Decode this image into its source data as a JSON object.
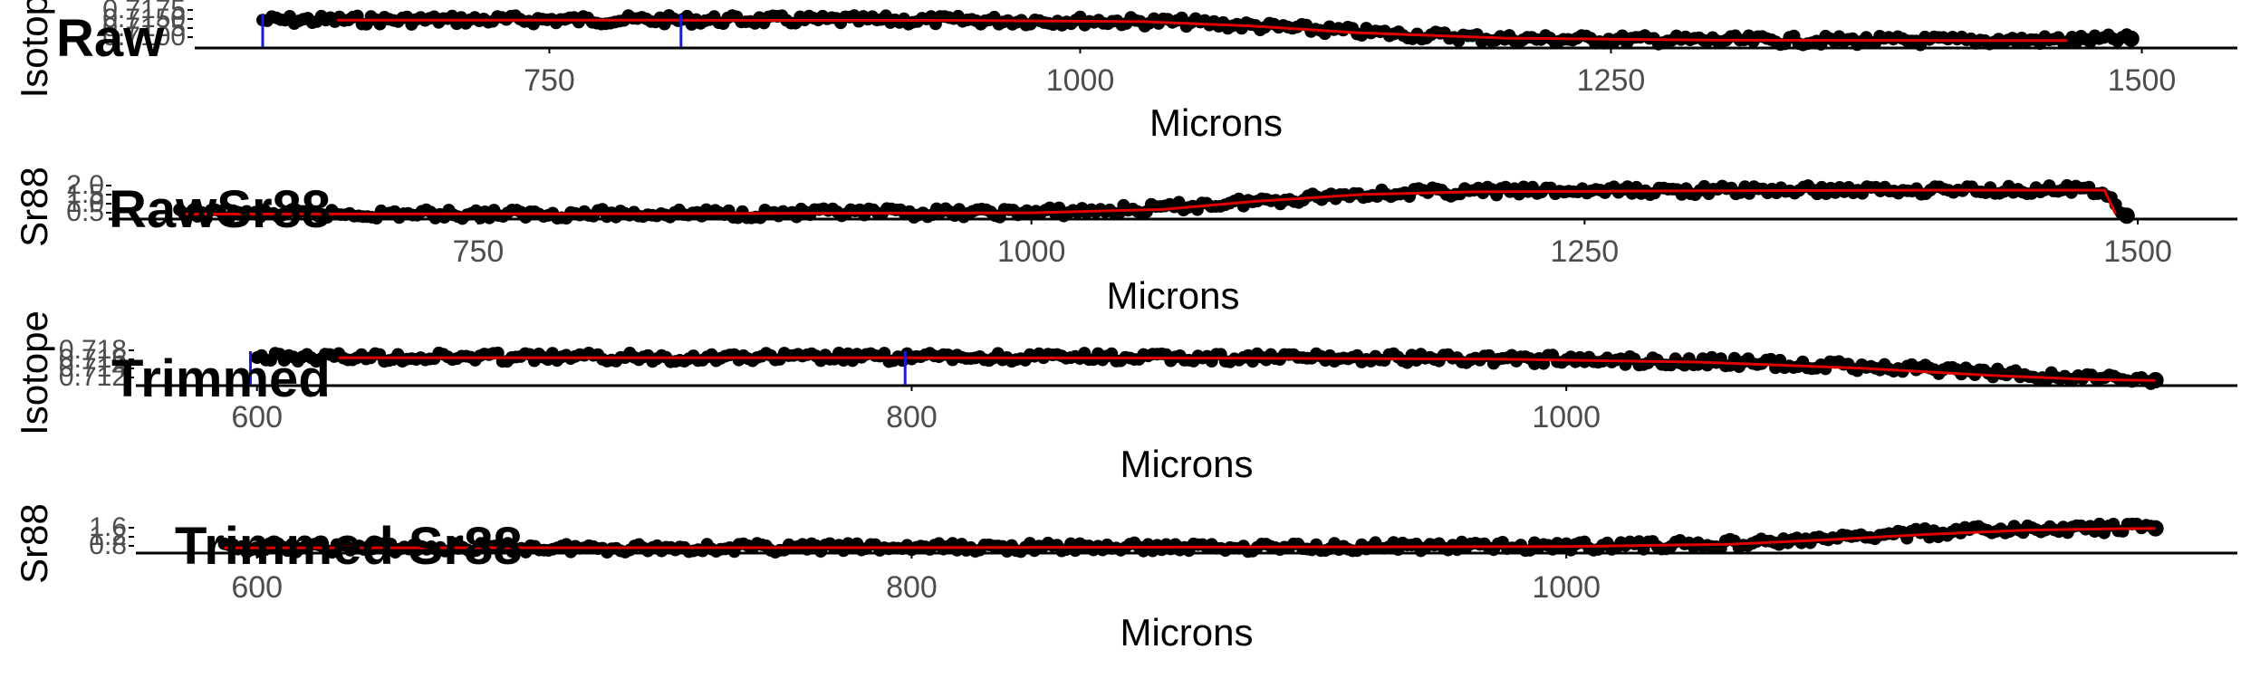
{
  "colors": {
    "points": "#000000",
    "fit": "#e00000",
    "marker": "#1a1adb",
    "axis": "#000000",
    "tick_text": "#4d4d4d"
  },
  "chart_data": [
    {
      "type": "scatter",
      "title": "Raw",
      "xlabel": "Microns",
      "ylabel": "Isotope",
      "xlim": [
        583,
        1545
      ],
      "x_ticks": [
        "750",
        "1000",
        "1250",
        "1500"
      ],
      "x_tick_values": [
        750,
        1000,
        1250,
        1500
      ],
      "y_ticks": [
        "0.7175",
        "0.7150",
        "0.7125",
        "0.7100"
      ],
      "ylim": [
        0.709,
        0.719
      ],
      "vertical_markers": [
        615,
        812
      ],
      "grid": false,
      "series": [
        {
          "kind": "points",
          "x": [
            615,
            700,
            800,
            900,
            1000,
            1050,
            1100,
            1150,
            1200,
            1300,
            1400,
            1450,
            1480,
            1495
          ],
          "y": [
            0.7177,
            0.7178,
            0.7178,
            0.7177,
            0.7175,
            0.717,
            0.715,
            0.713,
            0.7115,
            0.711,
            0.7108,
            0.711,
            0.7112,
            0.7115
          ]
        },
        {
          "kind": "fit",
          "x": [
            650,
            800,
            950,
            1030,
            1080,
            1130,
            1200,
            1300,
            1400,
            1465
          ],
          "y": [
            0.7177,
            0.7177,
            0.7176,
            0.7172,
            0.7158,
            0.7135,
            0.7117,
            0.711,
            0.7109,
            0.7109
          ]
        }
      ]
    },
    {
      "type": "scatter",
      "title": "RawSr88",
      "xlabel": "Microns",
      "ylabel": "Sr88",
      "xlim": [
        583,
        1545
      ],
      "x_ticks": [
        "750",
        "1000",
        "1250",
        "1500"
      ],
      "x_tick_values": [
        750,
        1000,
        1250,
        1500
      ],
      "y_ticks": [
        "2.0",
        "1.5",
        "1.0",
        "0.5"
      ],
      "ylim": [
        0.3,
        2.2
      ],
      "grid": false,
      "series": [
        {
          "kind": "points",
          "x": [
            615,
            700,
            800,
            900,
            1000,
            1050,
            1100,
            1150,
            1200,
            1300,
            1400,
            1450,
            1480,
            1490,
            1495
          ],
          "y": [
            0.5,
            0.5,
            0.52,
            0.55,
            0.6,
            0.8,
            1.3,
            1.8,
            1.95,
            2.0,
            2.05,
            2.05,
            2.05,
            1.2,
            0.4
          ]
        },
        {
          "kind": "fit",
          "x": [
            615,
            800,
            1000,
            1060,
            1100,
            1150,
            1200,
            1300,
            1400,
            1485,
            1490
          ],
          "y": [
            0.5,
            0.52,
            0.58,
            0.8,
            1.3,
            1.75,
            1.92,
            1.98,
            2.02,
            2.02,
            0.5
          ]
        }
      ]
    },
    {
      "type": "scatter",
      "title": "Trimmed",
      "xlabel": "Microns",
      "ylabel": "Isotope",
      "xlim": [
        563,
        1205
      ],
      "x_ticks": [
        "600",
        "800",
        "1000"
      ],
      "x_tick_values": [
        600,
        800,
        1000
      ],
      "y_ticks": [
        "0.718",
        "0.716",
        "0.714",
        "0.712"
      ],
      "ylim": [
        0.7105,
        0.719
      ],
      "vertical_markers": [
        598,
        798
      ],
      "grid": false,
      "series": [
        {
          "kind": "points",
          "x": [
            600,
            650,
            700,
            800,
            900,
            950,
            1000,
            1050,
            1100,
            1140,
            1170,
            1180
          ],
          "y": [
            0.7178,
            0.7179,
            0.7178,
            0.7178,
            0.7177,
            0.7176,
            0.7172,
            0.7165,
            0.715,
            0.713,
            0.7118,
            0.7115
          ]
        },
        {
          "kind": "fit",
          "x": [
            625,
            700,
            800,
            900,
            980,
            1040,
            1090,
            1130,
            1160,
            1180
          ],
          "y": [
            0.7177,
            0.7177,
            0.7177,
            0.7176,
            0.7173,
            0.7165,
            0.7148,
            0.7128,
            0.7117,
            0.7114
          ]
        }
      ]
    },
    {
      "type": "scatter",
      "title": "Trimmed Sr88",
      "xlabel": "Microns",
      "ylabel": "Sr88",
      "xlim": [
        563,
        1205
      ],
      "x_ticks": [
        "600",
        "800",
        "1000"
      ],
      "x_tick_values": [
        600,
        800,
        1000
      ],
      "y_ticks": [
        "1.6",
        "1.2",
        "0.8"
      ],
      "ylim": [
        0.3,
        1.75
      ],
      "grid": false,
      "series": [
        {
          "kind": "points",
          "x": [
            590,
            700,
            800,
            900,
            1000,
            1050,
            1080,
            1100,
            1130,
            1160,
            1180
          ],
          "y": [
            0.5,
            0.5,
            0.52,
            0.55,
            0.6,
            0.75,
            1.0,
            1.3,
            1.55,
            1.65,
            1.66
          ]
        },
        {
          "kind": "fit",
          "x": [
            590,
            800,
            1000,
            1050,
            1080,
            1110,
            1140,
            1170,
            1180
          ],
          "y": [
            0.5,
            0.52,
            0.58,
            0.72,
            0.98,
            1.3,
            1.55,
            1.64,
            1.66
          ]
        }
      ]
    }
  ]
}
